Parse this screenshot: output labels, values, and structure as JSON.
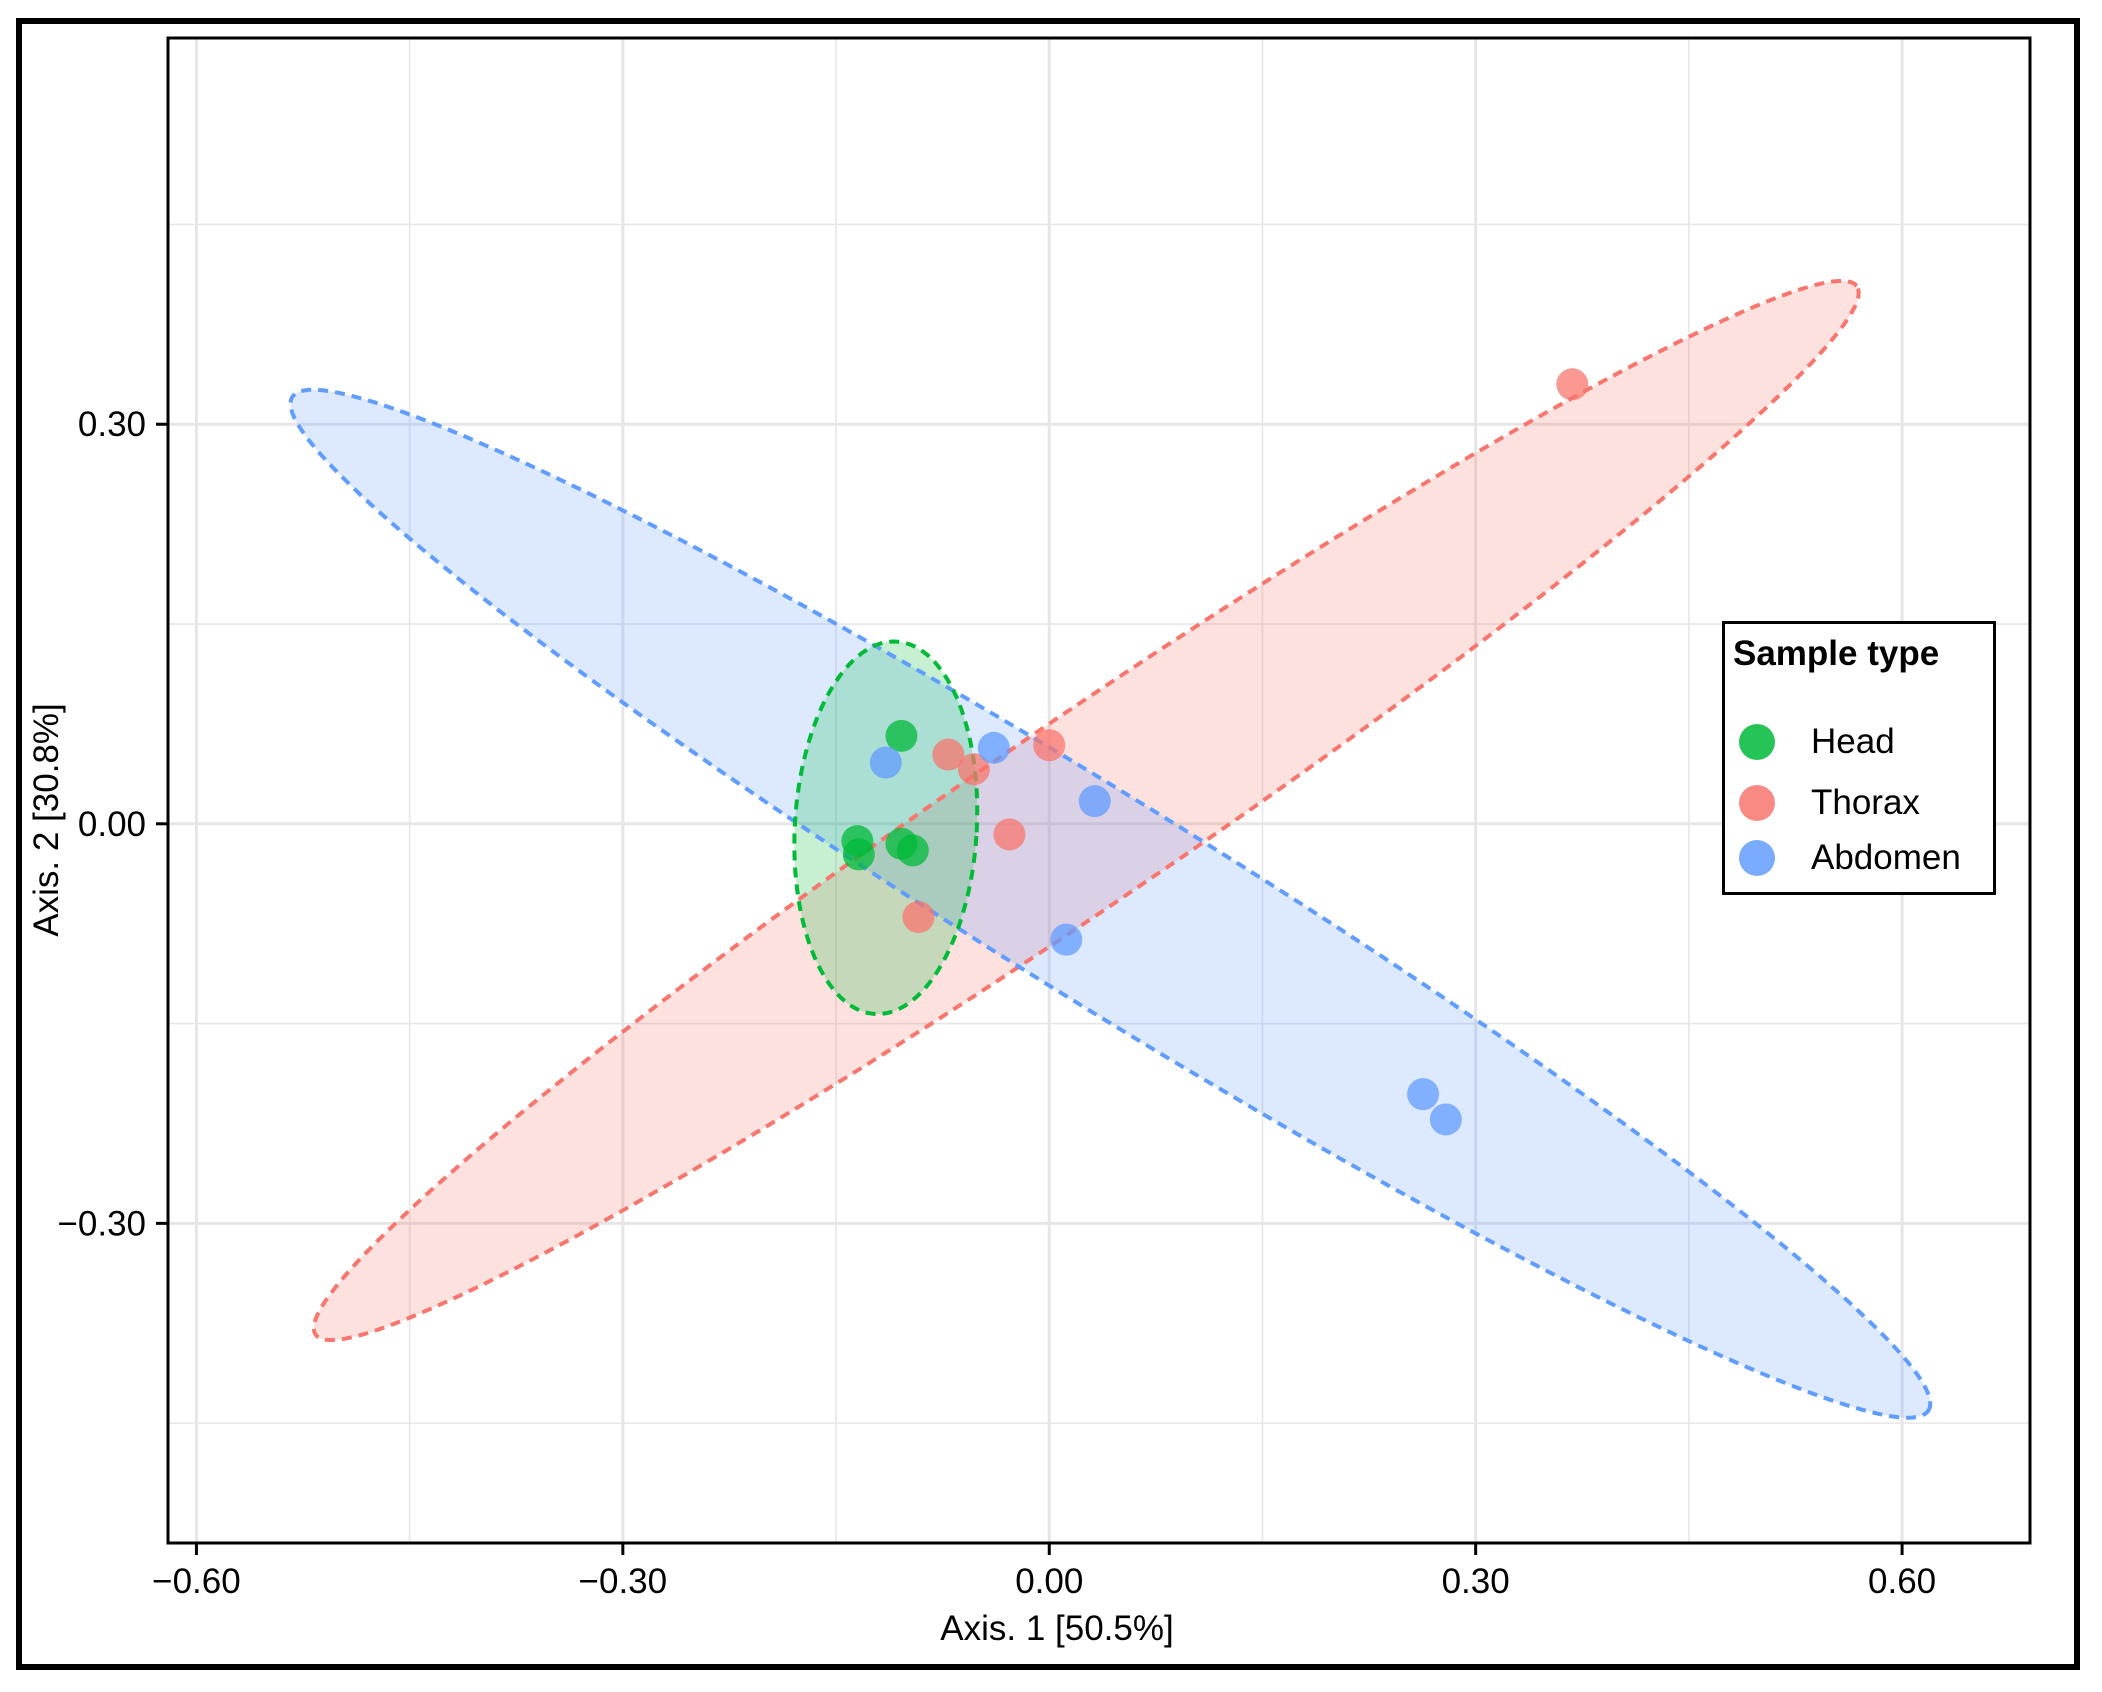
{
  "chart_data": {
    "type": "scatter",
    "title": "",
    "xlabel": "Axis. 1   [50.5%]",
    "ylabel": "Axis. 2   [30.8%]",
    "xlim": [
      -0.62,
      0.69
    ],
    "ylim": [
      -0.54,
      0.59
    ],
    "x_ticks": [
      -0.6,
      -0.3,
      0.0,
      0.3,
      0.6
    ],
    "x_tick_labels": [
      "−0.60",
      "−0.30",
      "0.00",
      "0.30",
      "0.60"
    ],
    "y_ticks": [
      0.3,
      0.0,
      -0.3
    ],
    "y_tick_labels": [
      "0.30",
      "0.00",
      "−0.30"
    ],
    "grid": true,
    "legend": {
      "title": "Sample type",
      "position": "right",
      "entries": [
        {
          "label": "Head",
          "color": "#00BA38"
        },
        {
          "label": "Thorax",
          "color": "#F8766D"
        },
        {
          "label": "Abdomen",
          "color": "#619CFF"
        }
      ]
    },
    "series": [
      {
        "name": "Head",
        "color": "#00BA38",
        "points": [
          [
            -0.104,
            0.066
          ],
          [
            -0.135,
            -0.013
          ],
          [
            -0.134,
            -0.023
          ],
          [
            -0.104,
            -0.015
          ],
          [
            -0.096,
            -0.02
          ]
        ]
      },
      {
        "name": "Thorax",
        "color": "#F8766D",
        "points": [
          [
            0.368,
            0.33
          ],
          [
            -0.071,
            0.052
          ],
          [
            -0.053,
            0.041
          ],
          [
            0.0,
            0.059
          ],
          [
            -0.028,
            -0.008
          ],
          [
            -0.092,
            -0.07
          ]
        ]
      },
      {
        "name": "Abdomen",
        "color": "#619CFF",
        "points": [
          [
            -0.115,
            0.046
          ],
          [
            -0.039,
            0.057
          ],
          [
            0.032,
            0.017
          ],
          [
            0.012,
            -0.087
          ],
          [
            0.263,
            -0.203
          ],
          [
            0.279,
            -0.222
          ]
        ]
      }
    ],
    "ellipses": [
      {
        "group": "Thorax",
        "color": "#F8766D",
        "fill": "#F8766D",
        "center": [
          0.026,
          0.01
        ],
        "radii": [
          0.67,
          0.068
        ],
        "angle_deg": 36
      },
      {
        "group": "Abdomen",
        "color": "#619CFF",
        "fill": "#619CFF",
        "center": [
          0.043,
          -0.06
        ],
        "radii": [
          0.69,
          0.075
        ],
        "angle_deg": -33.5
      },
      {
        "group": "Head",
        "color": "#00BA38",
        "fill": "#00BA38",
        "center": [
          -0.115,
          -0.003
        ],
        "radii": [
          0.064,
          0.14
        ],
        "angle_deg": -3
      }
    ]
  }
}
